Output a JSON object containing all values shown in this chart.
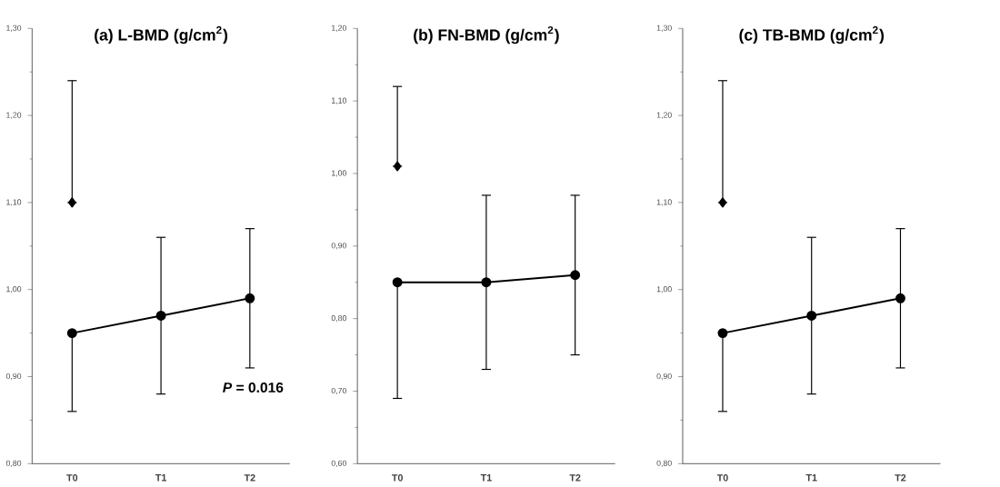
{
  "chart_data": [
    {
      "type": "line",
      "title": "(a) L-BMD (g/cm$^{2}$)",
      "categories": [
        "T0",
        "T1",
        "T2"
      ],
      "ylim": [
        0.8,
        1.3
      ],
      "yticks": [
        {
          "value": 0.8,
          "label": "0,80"
        },
        {
          "value": 0.85,
          "label": null
        },
        {
          "value": 0.9,
          "label": "0,90"
        },
        {
          "value": 0.95,
          "label": null
        },
        {
          "value": 1.0,
          "label": "1,00"
        },
        {
          "value": 1.05,
          "label": null
        },
        {
          "value": 1.1,
          "label": "1,10"
        },
        {
          "value": 1.15,
          "label": null
        },
        {
          "value": 1.2,
          "label": "1,20"
        },
        {
          "value": 1.25,
          "label": null
        },
        {
          "value": 1.3,
          "label": "1,30"
        }
      ],
      "series": [
        {
          "color": "#000000",
          "marker": "circle",
          "values": [
            0.95,
            0.97,
            0.99
          ],
          "errors": [
            [
              0.86,
              0.95
            ],
            [
              0.88,
              1.06
            ],
            [
              0.91,
              1.07
            ]
          ]
        },
        {
          "type": "scatter",
          "color": "#000000",
          "marker": "diamond",
          "values": [
            1.1,
            null,
            null
          ],
          "errors": [
            [
              1.1,
              1.24
            ],
            null,
            null
          ]
        }
      ],
      "annotations": [
        "*P* = 0.016"
      ]
    },
    {
      "type": "line",
      "title": "(b) FN-BMD (g/cm$^{2}$)",
      "categories": [
        "T0",
        "T1",
        "T2"
      ],
      "ylim": [
        0.6,
        1.2
      ],
      "yticks": [
        {
          "value": 0.6,
          "label": "0,60"
        },
        {
          "value": 0.65,
          "label": null
        },
        {
          "value": 0.7,
          "label": "0,70"
        },
        {
          "value": 0.75,
          "label": null
        },
        {
          "value": 0.8,
          "label": "0,80"
        },
        {
          "value": 0.85,
          "label": null
        },
        {
          "value": 0.9,
          "label": "0,90"
        },
        {
          "value": 0.95,
          "label": null
        },
        {
          "value": 1.0,
          "label": "1,00"
        },
        {
          "value": 1.05,
          "label": null
        },
        {
          "value": 1.1,
          "label": "1,10"
        },
        {
          "value": 1.15,
          "label": null
        },
        {
          "value": 1.2,
          "label": "1,20"
        }
      ],
      "series": [
        {
          "color": "#000000",
          "marker": "circle",
          "values": [
            0.85,
            0.85,
            0.86
          ],
          "errors": [
            [
              0.69,
              0.85
            ],
            [
              0.73,
              0.97
            ],
            [
              0.75,
              0.97
            ]
          ]
        },
        {
          "type": "scatter",
          "color": "#000000",
          "marker": "diamond",
          "values": [
            1.01,
            null,
            null
          ],
          "errors": [
            [
              1.01,
              1.12
            ],
            null,
            null
          ]
        }
      ]
    },
    {
      "type": "line",
      "title": "(c) TB-BMD (g/cm$^{2}$)",
      "categories": [
        "T0",
        "T1",
        "T2"
      ],
      "ylim": [
        0.8,
        1.3
      ],
      "yticks": [
        {
          "value": 0.8,
          "label": "0,80"
        },
        {
          "value": 0.85,
          "label": null
        },
        {
          "value": 0.9,
          "label": "0,90"
        },
        {
          "value": 0.95,
          "label": null
        },
        {
          "value": 1.0,
          "label": "1,00"
        },
        {
          "value": 1.05,
          "label": null
        },
        {
          "value": 1.1,
          "label": "1,10"
        },
        {
          "value": 1.15,
          "label": null
        },
        {
          "value": 1.2,
          "label": "1,20"
        },
        {
          "value": 1.25,
          "label": null
        },
        {
          "value": 1.3,
          "label": "1,30"
        }
      ],
      "series": [
        {
          "color": "#000000",
          "marker": "circle",
          "values": [
            0.95,
            0.97,
            0.99
          ],
          "errors": [
            [
              0.86,
              0.95
            ],
            [
              0.88,
              1.06
            ],
            [
              0.91,
              1.07
            ]
          ]
        },
        {
          "type": "scatter",
          "color": "#000000",
          "marker": "diamond",
          "values": [
            1.1,
            null,
            null
          ],
          "errors": [
            [
              1.1,
              1.24
            ],
            null,
            null
          ]
        }
      ]
    }
  ]
}
